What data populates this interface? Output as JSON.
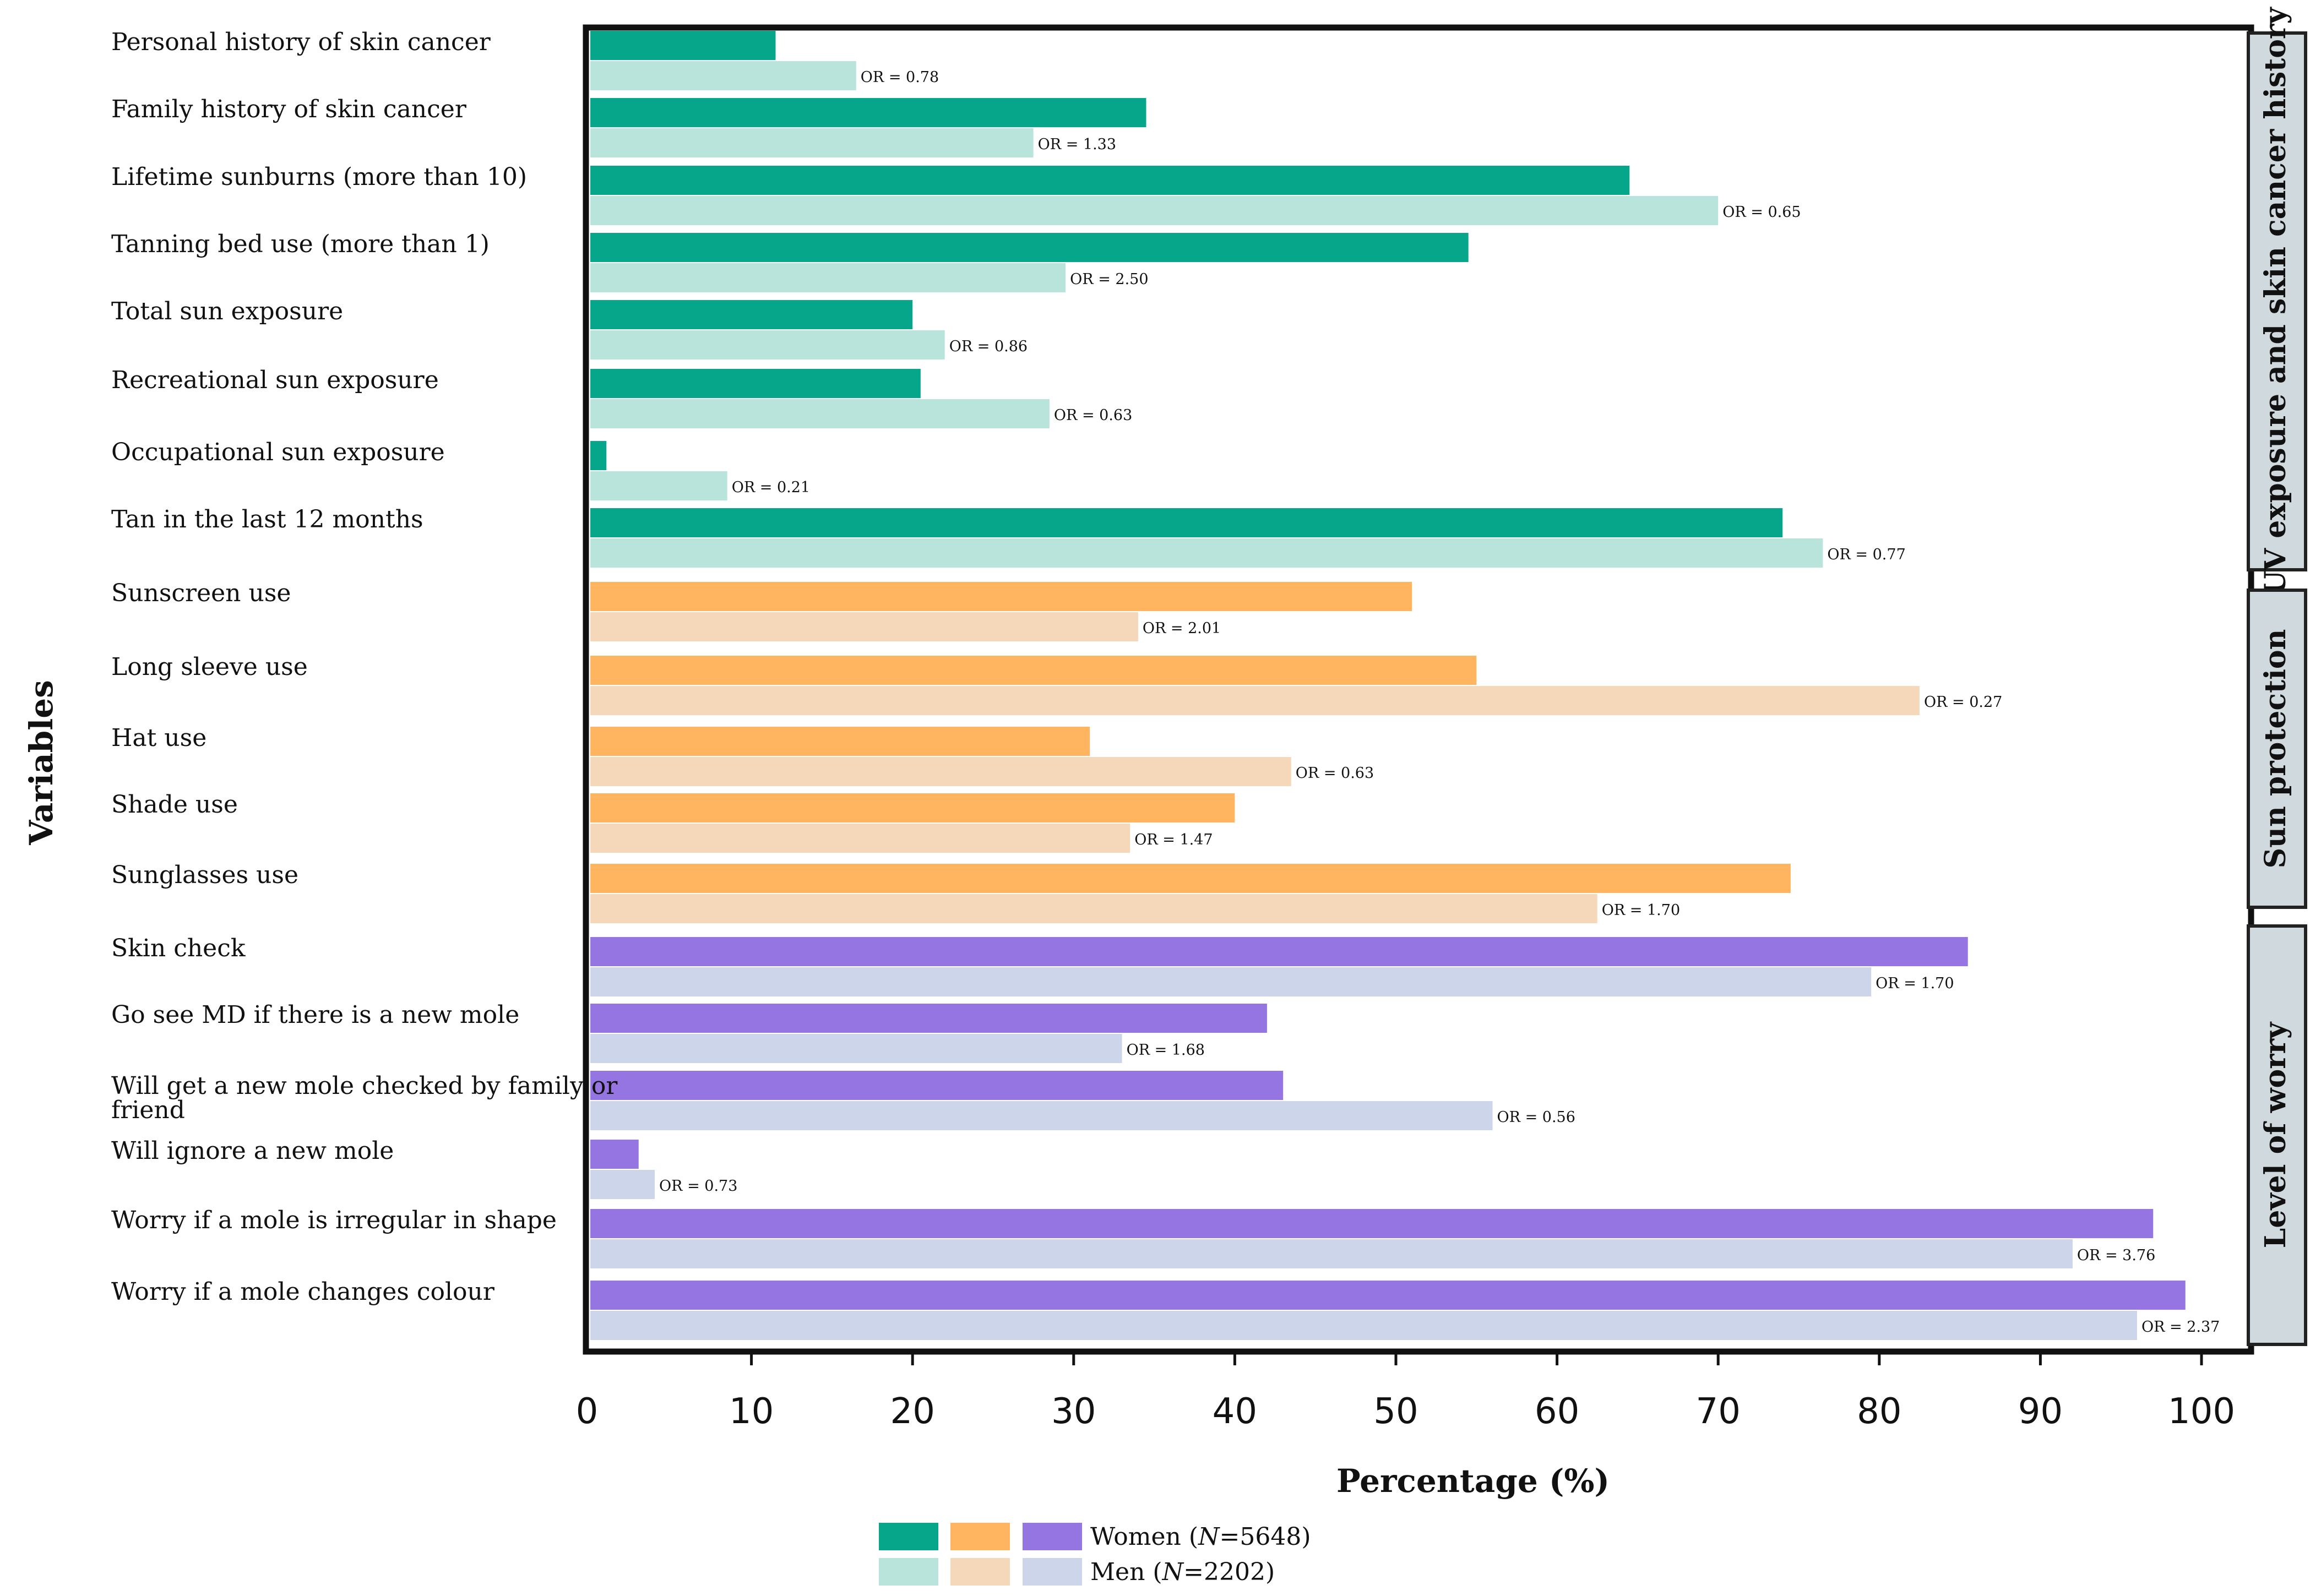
{
  "chart_data": {
    "type": "bar",
    "orientation": "horizontal",
    "xlabel": "Percentage (%)",
    "ylabel": "Variables",
    "xlim": [
      0,
      100
    ],
    "xticks": [
      0,
      10,
      20,
      30,
      40,
      50,
      60,
      70,
      80,
      90,
      100
    ],
    "legend": {
      "position": "bottom-center",
      "women_label_prefix": "Women (",
      "women_label_n": "N",
      "women_label_suffix": "=5648)",
      "men_label_prefix": "Men (",
      "men_label_n": "N",
      "men_label_suffix": "=2202)"
    },
    "groups": [
      {
        "name": "UV exposure and skin cancer history",
        "women_color": "#05a68a",
        "men_color": "#b8e4dc",
        "categories": [
          {
            "label": "Personal history of skin cancer",
            "women": 11.5,
            "men": 16.5,
            "or": "OR = 0.78"
          },
          {
            "label": "Family history of skin cancer",
            "women": 34.5,
            "men": 27.5,
            "or": "OR = 1.33"
          },
          {
            "label": "Lifetime sunburns (more than 10)",
            "women": 64.5,
            "men": 70,
            "or": "OR = 0.65"
          },
          {
            "label": "Tanning bed use (more than 1)",
            "women": 54.5,
            "men": 29.5,
            "or": "OR = 2.50"
          },
          {
            "label": "Total sun exposure",
            "women": 20,
            "men": 22,
            "or": "OR = 0.86"
          },
          {
            "label": "Recreational sun exposure",
            "women": 20.5,
            "men": 28.5,
            "or": "OR = 0.63"
          },
          {
            "label": "Occupational sun exposure",
            "women": 1,
            "men": 8.5,
            "or": "OR = 0.21"
          },
          {
            "label": "Tan in the last 12 months",
            "women": 74,
            "men": 76.5,
            "or": "OR = 0.77"
          }
        ]
      },
      {
        "name": "Sun protection",
        "women_color": "#ffb55f",
        "men_color": "#f5d8b9",
        "categories": [
          {
            "label": "Sunscreen use",
            "women": 51,
            "men": 34,
            "or": "OR = 2.01"
          },
          {
            "label": "Long sleeve use",
            "women": 55,
            "men": 82.5,
            "or": "OR = 0.27"
          },
          {
            "label": "Hat use",
            "women": 31,
            "men": 43.5,
            "or": "OR = 0.63"
          },
          {
            "label": "Shade use",
            "women": 40,
            "men": 33.5,
            "or": "OR = 1.47"
          },
          {
            "label": "Sunglasses use",
            "women": 74.5,
            "men": 62.5,
            "or": "OR = 1.70"
          }
        ]
      },
      {
        "name": "Level of worry",
        "women_color": "#9575e1",
        "men_color": "#ccd5ea",
        "categories": [
          {
            "label": "Skin check",
            "women": 85.5,
            "men": 79.5,
            "or": "OR = 1.70"
          },
          {
            "label": "Go see MD if there is a new mole",
            "women": 42,
            "men": 33,
            "or": "OR = 1.68"
          },
          {
            "label": "Will get a new mole checked by family or friend",
            "women": 43,
            "men": 56,
            "or": "OR = 0.56"
          },
          {
            "label": "Will ignore a new mole",
            "women": 3,
            "men": 4,
            "or": "OR = 0.73"
          },
          {
            "label": "Worry if a mole is irregular in shape",
            "women": 97,
            "men": 92,
            "or": "OR = 3.76"
          },
          {
            "label": "Worry if a mole changes colour",
            "women": 99,
            "men": 96,
            "or": "OR = 2.37"
          }
        ]
      }
    ]
  }
}
